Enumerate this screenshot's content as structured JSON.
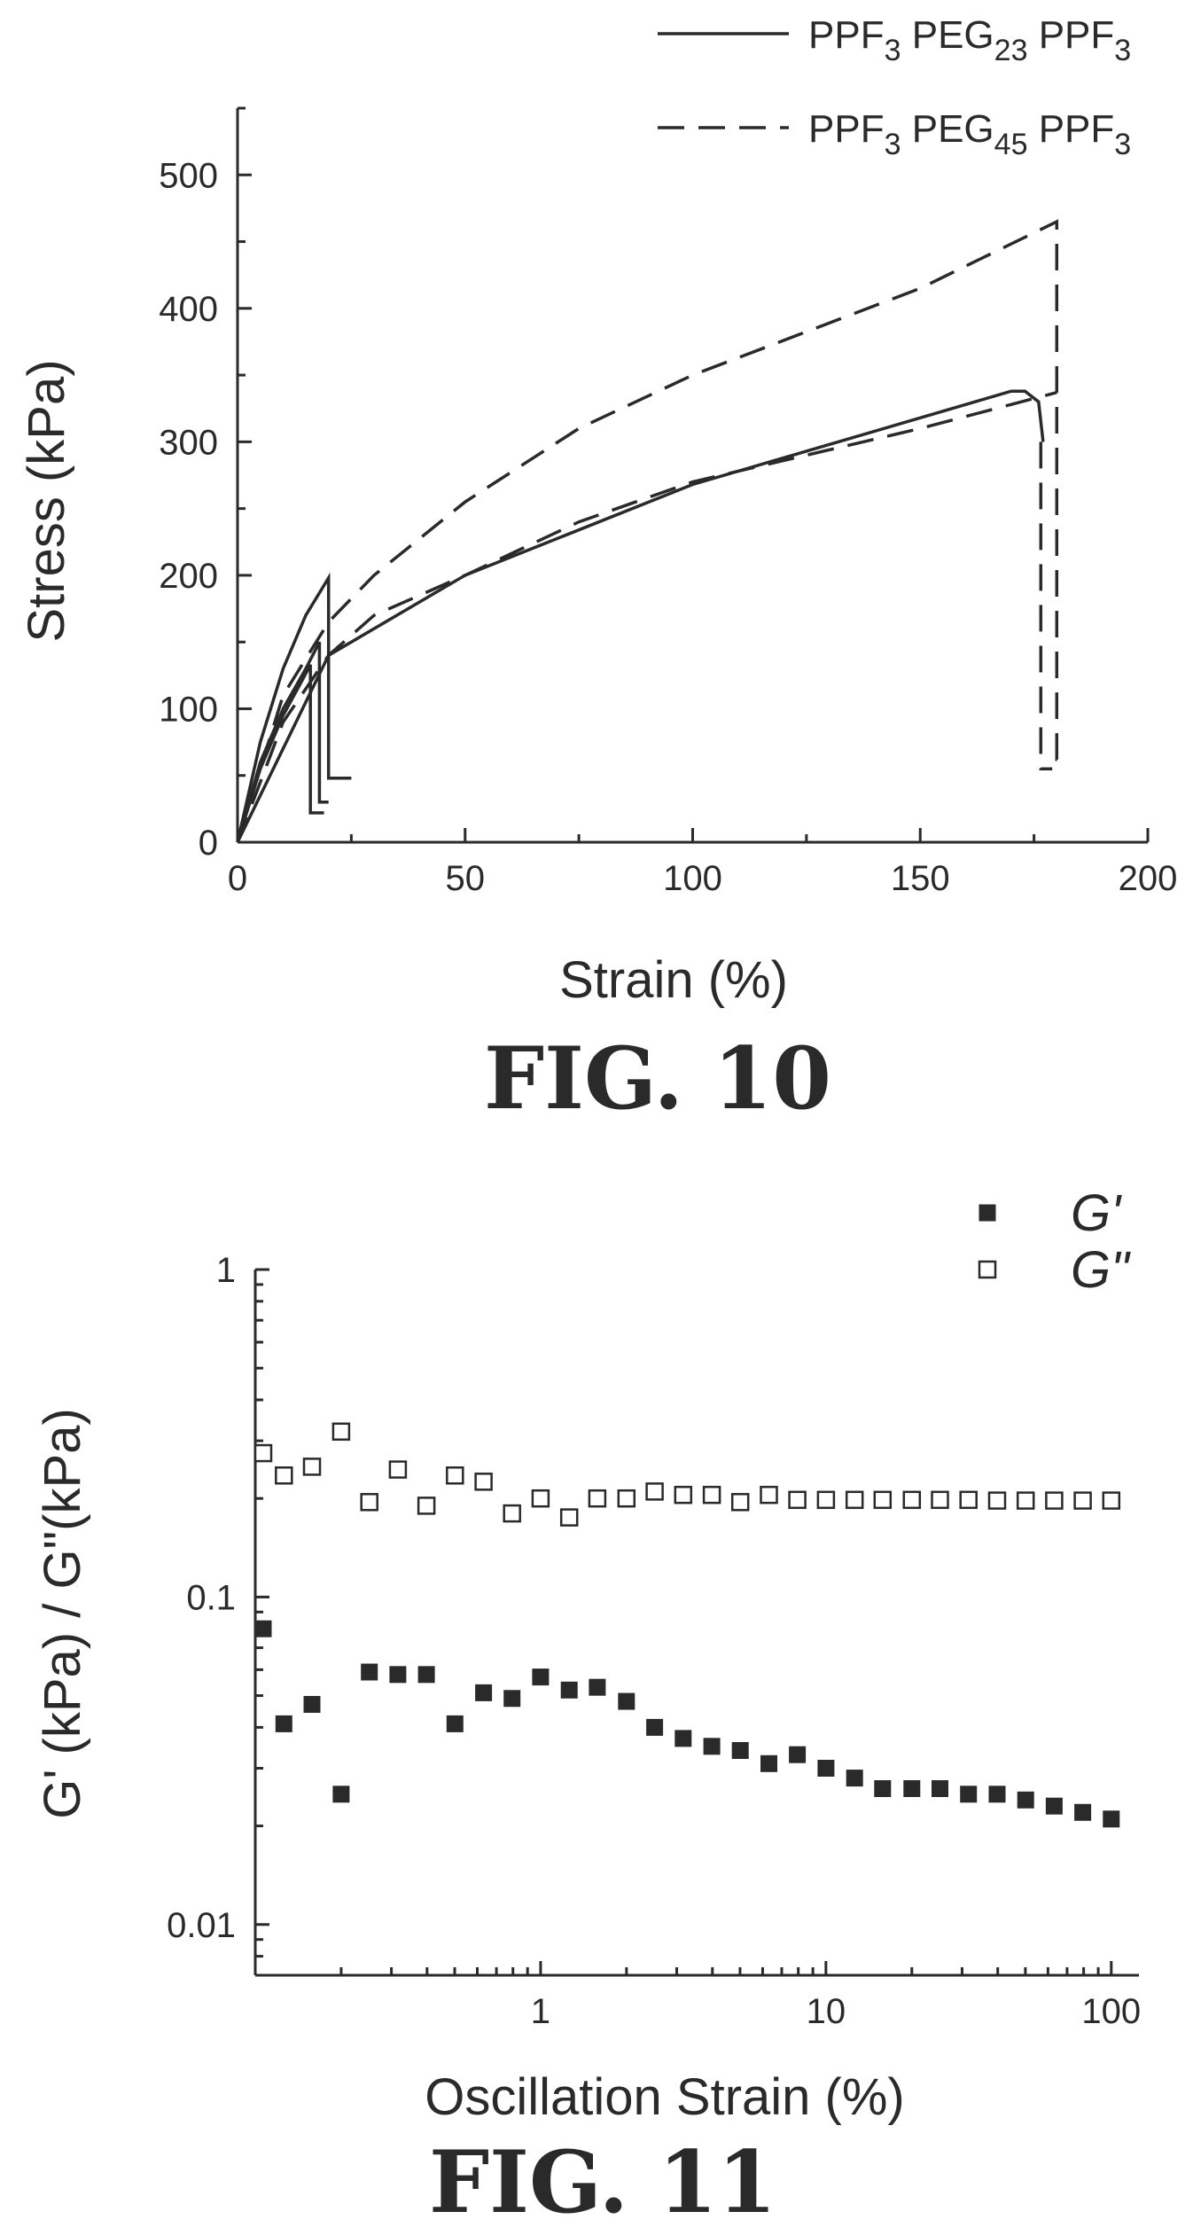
{
  "figures": {
    "fig10_caption": "FIG. 10",
    "fig11_caption": "FIG. 11"
  },
  "chart_data": [
    {
      "type": "line",
      "title": "",
      "xlabel": "Strain (%)",
      "ylabel": "Stress (kPa)",
      "xlim": [
        0,
        200
      ],
      "ylim": [
        0,
        550
      ],
      "xticks": [
        0,
        50,
        100,
        150,
        200
      ],
      "yticks": [
        0,
        100,
        200,
        300,
        400,
        500
      ],
      "grid": false,
      "legend_placement": "top-right",
      "legend": [
        {
          "base": "PPF",
          "sub1": "3",
          "mid": " PEG",
          "sub2": "23",
          "end": "  PPF",
          "sub3": "3",
          "style": "solid"
        },
        {
          "base": "PPF",
          "sub1": "3",
          "mid": " PEG",
          "sub2": "45",
          "end": " PPF",
          "sub3": "3",
          "style": "dashed"
        }
      ],
      "series": [
        {
          "style": "solid",
          "x": [
            0,
            5,
            10,
            15,
            20,
            20,
            25
          ],
          "y": [
            0,
            75,
            130,
            170,
            198,
            48,
            48
          ]
        },
        {
          "style": "solid",
          "x": [
            0,
            5,
            10,
            15,
            18,
            18,
            20
          ],
          "y": [
            0,
            60,
            100,
            130,
            150,
            30,
            30
          ]
        },
        {
          "style": "solid",
          "x": [
            0,
            5,
            10,
            14,
            16,
            16,
            19
          ],
          "y": [
            0,
            55,
            95,
            120,
            133,
            22,
            22
          ]
        },
        {
          "style": "solid",
          "x": [
            0,
            20,
            50,
            100,
            150,
            170,
            173,
            176,
            177
          ],
          "y": [
            0,
            140,
            200,
            268,
            318,
            338,
            338,
            330,
            300
          ]
        },
        {
          "style": "dashed",
          "x": [
            0,
            10,
            20,
            30,
            50,
            75,
            100,
            150,
            180,
            180,
            182
          ],
          "y": [
            0,
            110,
            165,
            200,
            255,
            310,
            350,
            415,
            465,
            62,
            62
          ]
        },
        {
          "style": "dashed",
          "x": [
            0,
            10,
            20,
            30,
            50,
            75,
            100,
            150,
            180
          ],
          "y": [
            0,
            90,
            140,
            170,
            200,
            240,
            270,
            310,
            337
          ]
        },
        {
          "style": "dashed",
          "x": [
            176.5,
            176.5,
            179
          ],
          "y": [
            300,
            55,
            55
          ]
        }
      ]
    },
    {
      "type": "scatter",
      "title": "",
      "xlabel": "Oscillation Strain (%)",
      "ylabel": "G' (kPa) / G\"(kPa)",
      "xscale": "log",
      "yscale": "log",
      "xlim": [
        0.1,
        125
      ],
      "ylim": [
        0.007,
        1.0
      ],
      "xticks": [
        1,
        10,
        100
      ],
      "xtick_labels": [
        "1",
        "10",
        "100"
      ],
      "yticks": [
        0.01,
        0.1,
        1
      ],
      "ytick_labels": [
        "0.01",
        "0.1",
        "1"
      ],
      "grid": false,
      "legend_placement": "top-right",
      "legend": [
        {
          "label": "G'",
          "marker": "filled-square"
        },
        {
          "label": "G\"",
          "marker": "open-square"
        }
      ],
      "x": [
        0.1,
        0.126,
        0.158,
        0.2,
        0.251,
        0.316,
        0.398,
        0.501,
        0.631,
        0.794,
        1.0,
        1.26,
        1.58,
        2.0,
        2.51,
        3.16,
        3.98,
        5.01,
        6.31,
        7.94,
        10.0,
        12.6,
        15.8,
        20.0,
        25.1,
        31.6,
        39.8,
        50.1,
        63.1,
        79.4,
        100.0
      ],
      "series": [
        {
          "name": "G'",
          "marker": "filled-square",
          "values": [
            0.08,
            0.041,
            0.047,
            0.025,
            0.059,
            0.058,
            0.058,
            0.041,
            0.051,
            0.049,
            0.057,
            0.052,
            0.053,
            0.048,
            0.04,
            0.037,
            0.035,
            0.034,
            0.031,
            0.033,
            0.03,
            0.028,
            0.026,
            0.026,
            0.026,
            0.025,
            0.025,
            0.024,
            0.023,
            0.022,
            0.021
          ]
        },
        {
          "name": "G\"",
          "marker": "open-square",
          "values": [
            0.275,
            0.235,
            0.25,
            0.32,
            0.195,
            0.245,
            0.19,
            0.235,
            0.225,
            0.18,
            0.2,
            0.175,
            0.2,
            0.2,
            0.21,
            0.205,
            0.205,
            0.195,
            0.205,
            0.198,
            0.198,
            0.198,
            0.198,
            0.198,
            0.198,
            0.198,
            0.197,
            0.197,
            0.197,
            0.197,
            0.197
          ]
        }
      ]
    }
  ]
}
